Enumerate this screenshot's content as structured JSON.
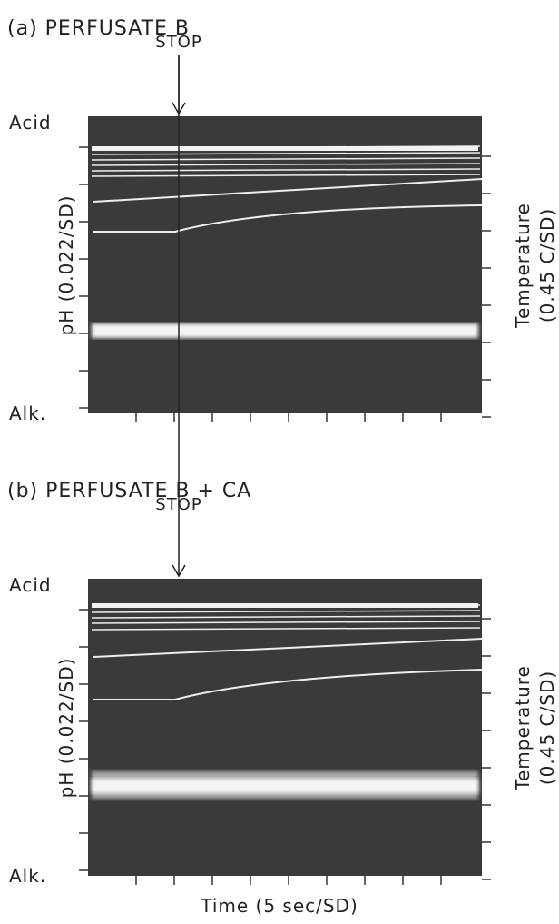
{
  "panels": [
    {
      "title": "(a) PERFUSATE B",
      "marker": "STOP",
      "top_label": "Acid",
      "bottom_label": "Alk.",
      "left_axis": "pH (0.022/SD)",
      "right_axis": [
        "Temperature",
        "(0.45 C/SD)"
      ]
    },
    {
      "title": "(b) PERFUSATE B + CA",
      "marker": "STOP",
      "top_label": "Acid",
      "bottom_label": "Alk.",
      "left_axis": "pH (0.022/SD)",
      "right_axis": [
        "Temperature",
        "(0.45 C/SD)"
      ]
    }
  ],
  "x_axis": "Time (5 sec/SD)"
}
